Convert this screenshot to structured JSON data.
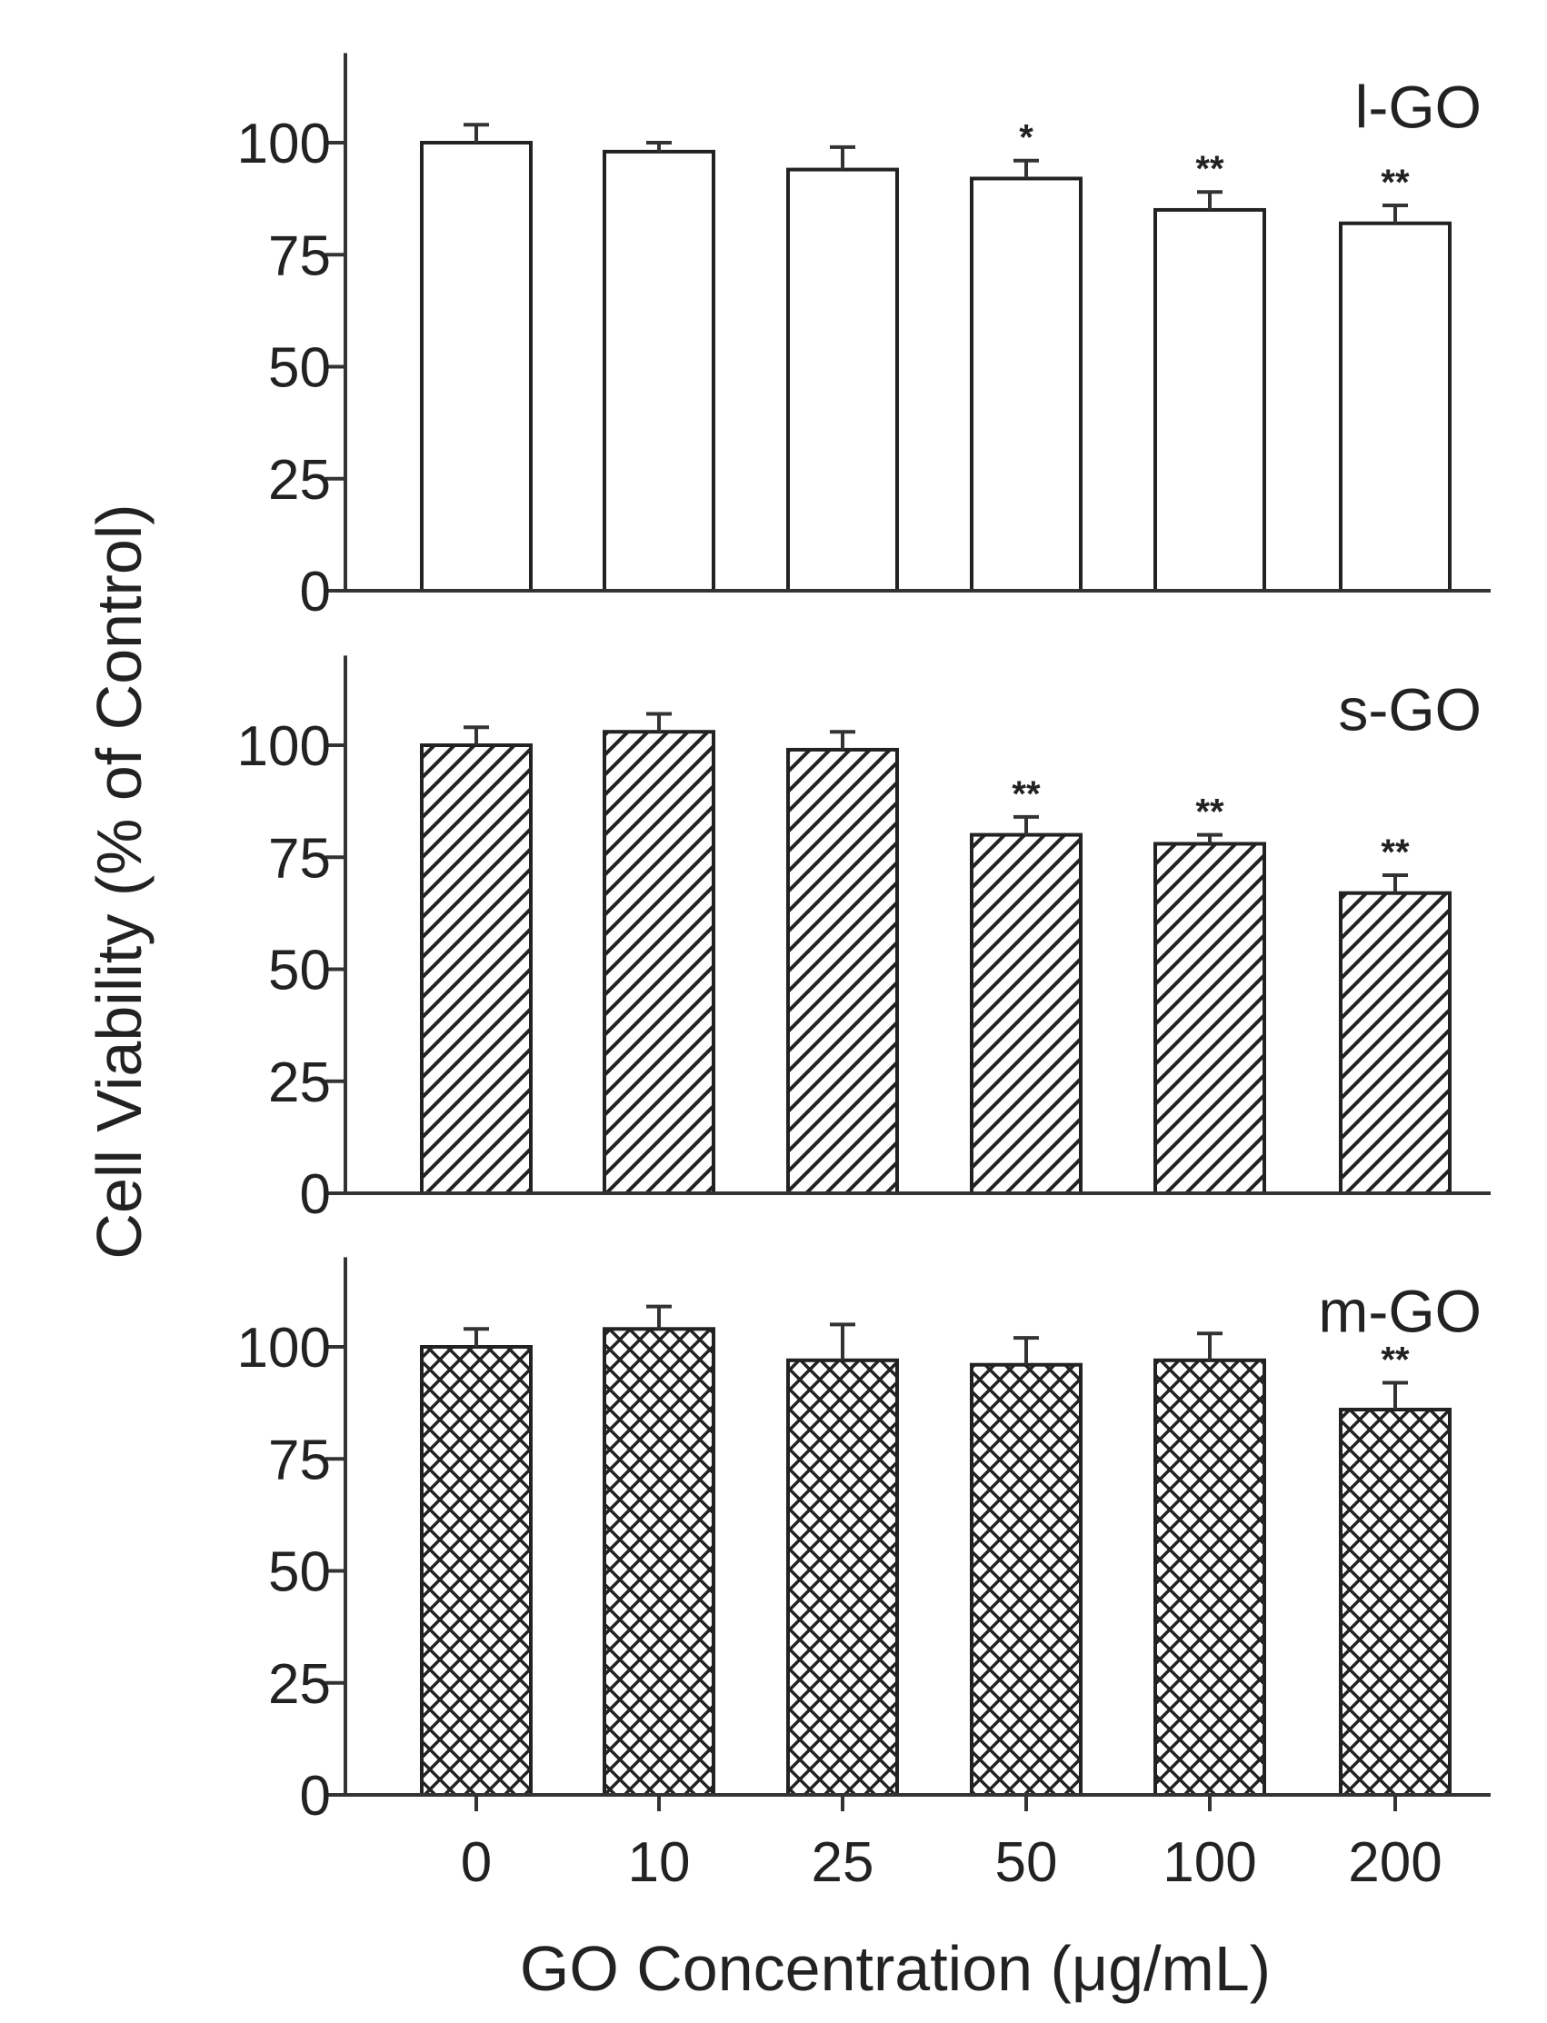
{
  "chart_data": {
    "type": "bar",
    "ylabel": "Cell Viability (% of Control)",
    "xlabel": "GO Concentration  (μg/mL)",
    "categories": [
      "0",
      "10",
      "25",
      "50",
      "100",
      "200"
    ],
    "ylim": [
      0,
      120
    ],
    "yticks": [
      "0",
      "25",
      "50",
      "75",
      "100"
    ],
    "panels": [
      {
        "label": "l-GO",
        "fill": "empty",
        "values": [
          100,
          98,
          94,
          92,
          85,
          82
        ],
        "errors": [
          4,
          2,
          5,
          4,
          4,
          4
        ],
        "significance": [
          "",
          "",
          "",
          "*",
          "**",
          "**"
        ]
      },
      {
        "label": "s-GO",
        "fill": "diagonal-hatch",
        "values": [
          100,
          103,
          99,
          80,
          78,
          67
        ],
        "errors": [
          4,
          4,
          4,
          4,
          2,
          4
        ],
        "significance": [
          "",
          "",
          "",
          "**",
          "**",
          "**"
        ]
      },
      {
        "label": "m-GO",
        "fill": "crosshatch",
        "values": [
          100,
          104,
          97,
          96,
          97,
          86
        ],
        "errors": [
          4,
          5,
          8,
          6,
          6,
          6
        ],
        "significance": [
          "",
          "",
          "",
          "",
          "",
          "**"
        ]
      }
    ]
  }
}
